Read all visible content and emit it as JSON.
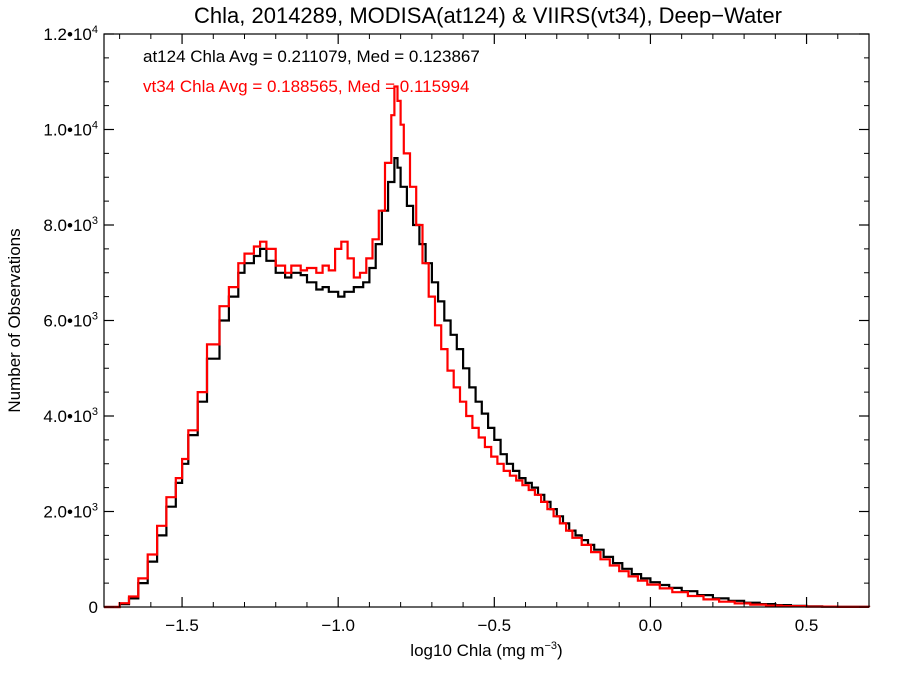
{
  "chart_data": {
    "type": "line",
    "step": true,
    "title": "Chla, 2014289, MODISA(at124) & VIIRS(vt34), Deep−Water",
    "xlabel": "log10 Chla (mg m",
    "xlabel_sup": "−3",
    "xlabel_tail": ")",
    "ylabel": "Number of Observations",
    "xlim": [
      -1.75,
      0.7
    ],
    "ylim": [
      0,
      12000
    ],
    "x_ticks": [
      {
        "value": -1.5,
        "label": "−1.5"
      },
      {
        "value": -1.0,
        "label": "−1.0"
      },
      {
        "value": -0.5,
        "label": "−0.5"
      },
      {
        "value": 0.0,
        "label": "0.0"
      },
      {
        "value": 0.5,
        "label": "0.5"
      }
    ],
    "y_ticks": [
      {
        "value": 0,
        "base": "0",
        "exp": ""
      },
      {
        "value": 2000,
        "base": "2.0•10",
        "exp": "3"
      },
      {
        "value": 4000,
        "base": "4.0•10",
        "exp": "3"
      },
      {
        "value": 6000,
        "base": "6.0•10",
        "exp": "3"
      },
      {
        "value": 8000,
        "base": "8.0•10",
        "exp": "3"
      },
      {
        "value": 10000,
        "base": "1.0•10",
        "exp": "4"
      },
      {
        "value": 12000,
        "base": "1.2•10",
        "exp": "4"
      }
    ],
    "annotations": [
      {
        "text": "at124 Chla Avg = 0.211079, Med = 0.123867",
        "color": "#000000"
      },
      {
        "text": "vt34 Chla Avg = 0.188565, Med = 0.115994",
        "color": "#ff0000"
      }
    ],
    "series": [
      {
        "color": "#000000",
        "points": [
          [
            -1.75,
            0
          ],
          [
            -1.7,
            60
          ],
          [
            -1.67,
            180
          ],
          [
            -1.64,
            500
          ],
          [
            -1.61,
            950
          ],
          [
            -1.58,
            1500
          ],
          [
            -1.55,
            2100
          ],
          [
            -1.52,
            2600
          ],
          [
            -1.5,
            3000
          ],
          [
            -1.48,
            3600
          ],
          [
            -1.45,
            4300
          ],
          [
            -1.42,
            5200
          ],
          [
            -1.38,
            6000
          ],
          [
            -1.35,
            6500
          ],
          [
            -1.32,
            7000
          ],
          [
            -1.3,
            7200
          ],
          [
            -1.27,
            7350
          ],
          [
            -1.25,
            7500
          ],
          [
            -1.23,
            7250
          ],
          [
            -1.2,
            7000
          ],
          [
            -1.17,
            6900
          ],
          [
            -1.15,
            7000
          ],
          [
            -1.12,
            6950
          ],
          [
            -1.1,
            6800
          ],
          [
            -1.07,
            6650
          ],
          [
            -1.05,
            6700
          ],
          [
            -1.03,
            6600
          ],
          [
            -1.0,
            6500
          ],
          [
            -0.98,
            6600
          ],
          [
            -0.95,
            6700
          ],
          [
            -0.92,
            6800
          ],
          [
            -0.9,
            7100
          ],
          [
            -0.88,
            7600
          ],
          [
            -0.86,
            8300
          ],
          [
            -0.84,
            8900
          ],
          [
            -0.82,
            9400
          ],
          [
            -0.81,
            9200
          ],
          [
            -0.8,
            8800
          ],
          [
            -0.78,
            8400
          ],
          [
            -0.76,
            8000
          ],
          [
            -0.74,
            7600
          ],
          [
            -0.72,
            7200
          ],
          [
            -0.7,
            6800
          ],
          [
            -0.68,
            6400
          ],
          [
            -0.66,
            6000
          ],
          [
            -0.64,
            5700
          ],
          [
            -0.62,
            5400
          ],
          [
            -0.6,
            5000
          ],
          [
            -0.58,
            4600
          ],
          [
            -0.56,
            4300
          ],
          [
            -0.54,
            4050
          ],
          [
            -0.52,
            3750
          ],
          [
            -0.5,
            3500
          ],
          [
            -0.48,
            3200
          ],
          [
            -0.46,
            3000
          ],
          [
            -0.44,
            2850
          ],
          [
            -0.42,
            2700
          ],
          [
            -0.4,
            2600
          ],
          [
            -0.38,
            2500
          ],
          [
            -0.36,
            2350
          ],
          [
            -0.34,
            2200
          ],
          [
            -0.32,
            2050
          ],
          [
            -0.3,
            1900
          ],
          [
            -0.28,
            1750
          ],
          [
            -0.26,
            1600
          ],
          [
            -0.24,
            1500
          ],
          [
            -0.22,
            1400
          ],
          [
            -0.2,
            1300
          ],
          [
            -0.18,
            1200
          ],
          [
            -0.15,
            1050
          ],
          [
            -0.12,
            920
          ],
          [
            -0.09,
            800
          ],
          [
            -0.06,
            690
          ],
          [
            -0.03,
            600
          ],
          [
            0.0,
            520
          ],
          [
            0.03,
            460
          ],
          [
            0.06,
            400
          ],
          [
            0.1,
            330
          ],
          [
            0.15,
            250
          ],
          [
            0.2,
            180
          ],
          [
            0.25,
            130
          ],
          [
            0.3,
            90
          ],
          [
            0.35,
            60
          ],
          [
            0.4,
            40
          ],
          [
            0.45,
            25
          ],
          [
            0.5,
            15
          ],
          [
            0.55,
            8
          ],
          [
            0.6,
            4
          ],
          [
            0.7,
            0
          ]
        ]
      },
      {
        "color": "#ff0000",
        "points": [
          [
            -1.75,
            0
          ],
          [
            -1.7,
            80
          ],
          [
            -1.67,
            220
          ],
          [
            -1.64,
            600
          ],
          [
            -1.61,
            1100
          ],
          [
            -1.58,
            1700
          ],
          [
            -1.55,
            2300
          ],
          [
            -1.52,
            2700
          ],
          [
            -1.5,
            3100
          ],
          [
            -1.48,
            3700
          ],
          [
            -1.45,
            4500
          ],
          [
            -1.42,
            5500
          ],
          [
            -1.38,
            6300
          ],
          [
            -1.35,
            6700
          ],
          [
            -1.32,
            7200
          ],
          [
            -1.3,
            7400
          ],
          [
            -1.27,
            7550
          ],
          [
            -1.25,
            7650
          ],
          [
            -1.23,
            7500
          ],
          [
            -1.2,
            7150
          ],
          [
            -1.17,
            7000
          ],
          [
            -1.15,
            7150
          ],
          [
            -1.12,
            7050
          ],
          [
            -1.1,
            7100
          ],
          [
            -1.07,
            7000
          ],
          [
            -1.05,
            7150
          ],
          [
            -1.03,
            7050
          ],
          [
            -1.01,
            7500
          ],
          [
            -0.99,
            7650
          ],
          [
            -0.97,
            7300
          ],
          [
            -0.95,
            6900
          ],
          [
            -0.93,
            7000
          ],
          [
            -0.91,
            7300
          ],
          [
            -0.89,
            7700
          ],
          [
            -0.87,
            8300
          ],
          [
            -0.85,
            9300
          ],
          [
            -0.83,
            10300
          ],
          [
            -0.82,
            10900
          ],
          [
            -0.81,
            10600
          ],
          [
            -0.8,
            10100
          ],
          [
            -0.79,
            9500
          ],
          [
            -0.77,
            8800
          ],
          [
            -0.75,
            8000
          ],
          [
            -0.73,
            7200
          ],
          [
            -0.71,
            6500
          ],
          [
            -0.69,
            5900
          ],
          [
            -0.67,
            5400
          ],
          [
            -0.65,
            4950
          ],
          [
            -0.63,
            4600
          ],
          [
            -0.61,
            4300
          ],
          [
            -0.59,
            4000
          ],
          [
            -0.57,
            3750
          ],
          [
            -0.55,
            3550
          ],
          [
            -0.53,
            3350
          ],
          [
            -0.51,
            3150
          ],
          [
            -0.49,
            3000
          ],
          [
            -0.47,
            2850
          ],
          [
            -0.45,
            2750
          ],
          [
            -0.43,
            2650
          ],
          [
            -0.41,
            2550
          ],
          [
            -0.39,
            2450
          ],
          [
            -0.37,
            2350
          ],
          [
            -0.35,
            2200
          ],
          [
            -0.33,
            2050
          ],
          [
            -0.31,
            1900
          ],
          [
            -0.29,
            1750
          ],
          [
            -0.27,
            1600
          ],
          [
            -0.25,
            1450
          ],
          [
            -0.22,
            1300
          ],
          [
            -0.19,
            1150
          ],
          [
            -0.16,
            1000
          ],
          [
            -0.13,
            870
          ],
          [
            -0.1,
            750
          ],
          [
            -0.07,
            640
          ],
          [
            -0.04,
            550
          ],
          [
            -0.01,
            470
          ],
          [
            0.03,
            390
          ],
          [
            0.07,
            310
          ],
          [
            0.12,
            230
          ],
          [
            0.17,
            160
          ],
          [
            0.22,
            110
          ],
          [
            0.27,
            75
          ],
          [
            0.32,
            50
          ],
          [
            0.37,
            30
          ],
          [
            0.42,
            18
          ],
          [
            0.5,
            8
          ],
          [
            0.6,
            3
          ],
          [
            0.7,
            0
          ]
        ]
      }
    ]
  }
}
